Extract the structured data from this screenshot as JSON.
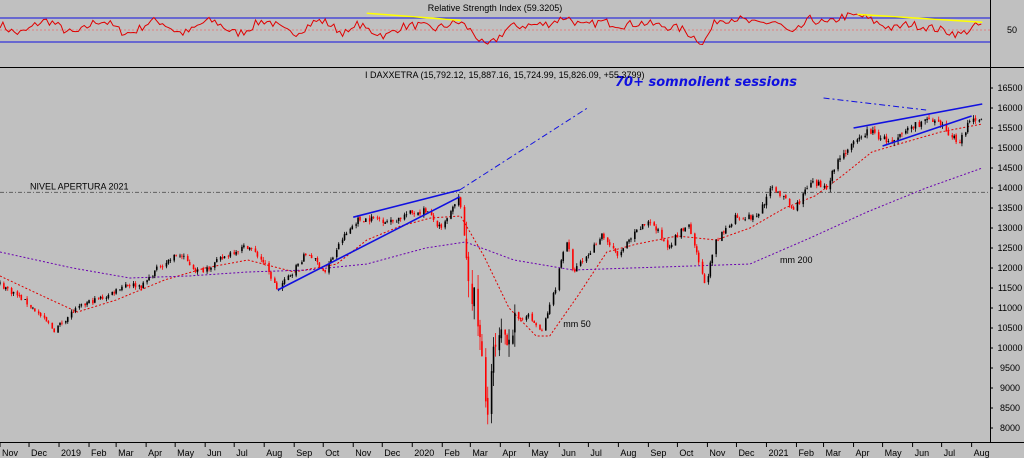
{
  "chart_data": [
    {
      "type": "line",
      "panel": "rsi",
      "title": "Relative Strength Index (59.3205)",
      "ylim": [
        0,
        100
      ],
      "y_ticks": [
        50
      ],
      "levels": [
        30,
        50,
        70
      ],
      "series": [
        {
          "name": "",
          "color": "#e00000",
          "points": [
            [
              "2019-11-01",
              62
            ],
            [
              "2019-11-20",
              48
            ],
            [
              "2019-12-05",
              40
            ],
            [
              "2019-12-20",
              55
            ],
            [
              "2020-01-05",
              58
            ],
            [
              "2020-01-25",
              52
            ],
            [
              "2020-02-10",
              60
            ],
            [
              "2020-02-20",
              63
            ],
            [
              "2020-03-05",
              44
            ],
            [
              "2020-03-16",
              22
            ],
            [
              "2020-03-25",
              30
            ],
            [
              "2020-04-10",
              55
            ],
            [
              "2020-05-01",
              58
            ],
            [
              "2020-05-20",
              60
            ],
            [
              "2020-06-08",
              72
            ],
            [
              "2020-06-25",
              56
            ],
            [
              "2020-07-15",
              64
            ],
            [
              "2020-08-05",
              58
            ],
            [
              "2020-08-25",
              62
            ],
            [
              "2020-09-15",
              57
            ],
            [
              "2020-10-05",
              52
            ],
            [
              "2020-10-28",
              28
            ],
            [
              "2020-11-10",
              66
            ],
            [
              "2020-11-30",
              70
            ],
            [
              "2020-12-20",
              60
            ],
            [
              "2021-01-10",
              64
            ],
            [
              "2021-01-28",
              42
            ],
            [
              "2021-02-15",
              68
            ],
            [
              "2021-03-05",
              60
            ],
            [
              "2021-03-20",
              72
            ],
            [
              "2021-04-08",
              74
            ],
            [
              "2021-04-25",
              62
            ],
            [
              "2021-05-12",
              52
            ],
            [
              "2021-05-28",
              60
            ],
            [
              "2021-06-15",
              55
            ],
            [
              "2021-07-01",
              50
            ],
            [
              "2021-07-20",
              42
            ],
            [
              "2021-08-05",
              56
            ],
            [
              "2021-08-12",
              59.3
            ]
          ]
        }
      ],
      "annotations": [
        {
          "type": "trendline",
          "color": "#ffff00",
          "from": [
            "2019-11-15",
            78
          ],
          "to": [
            "2020-02-20",
            66
          ]
        },
        {
          "type": "trendline",
          "color": "#ffff00",
          "from": [
            "2021-04-05",
            76
          ],
          "to": [
            "2021-08-12",
            63
          ]
        }
      ]
    },
    {
      "type": "line",
      "panel": "price",
      "title": "I DAXXETRA (15,792.12, 15,887.16, 15,724.99, 15,826.09, +55.3799)",
      "ylim": [
        7700,
        16700
      ],
      "y_ticks": [
        8000,
        8500,
        9000,
        9500,
        10000,
        10500,
        11000,
        11500,
        12000,
        12500,
        13000,
        13500,
        14000,
        14500,
        15000,
        15500,
        16000,
        16500
      ],
      "x_ticks": [
        {
          "date": "2018-11-01",
          "label": "Nov"
        },
        {
          "date": "2018-12-01",
          "label": "Dec"
        },
        {
          "date": "2019-01-01",
          "label": "2019"
        },
        {
          "date": "2019-02-01",
          "label": "Feb"
        },
        {
          "date": "2019-03-01",
          "label": "Mar"
        },
        {
          "date": "2019-04-01",
          "label": "Apr"
        },
        {
          "date": "2019-05-01",
          "label": "May"
        },
        {
          "date": "2019-06-01",
          "label": "Jun"
        },
        {
          "date": "2019-07-01",
          "label": "Jul"
        },
        {
          "date": "2019-08-01",
          "label": "Aug"
        },
        {
          "date": "2019-09-01",
          "label": "Sep"
        },
        {
          "date": "2019-10-01",
          "label": "Oct"
        },
        {
          "date": "2019-11-01",
          "label": "Nov"
        },
        {
          "date": "2019-12-01",
          "label": "Dec"
        },
        {
          "date": "2020-01-01",
          "label": "2020"
        },
        {
          "date": "2020-02-01",
          "label": "Feb"
        },
        {
          "date": "2020-03-01",
          "label": "Mar"
        },
        {
          "date": "2020-04-01",
          "label": "Apr"
        },
        {
          "date": "2020-05-01",
          "label": "May"
        },
        {
          "date": "2020-06-01",
          "label": "Jun"
        },
        {
          "date": "2020-07-01",
          "label": "Jul"
        },
        {
          "date": "2020-08-01",
          "label": "Aug"
        },
        {
          "date": "2020-09-01",
          "label": "Sep"
        },
        {
          "date": "2020-10-01",
          "label": "Oct"
        },
        {
          "date": "2020-11-01",
          "label": "Nov"
        },
        {
          "date": "2020-12-01",
          "label": "Dec"
        },
        {
          "date": "2021-01-01",
          "label": "2021"
        },
        {
          "date": "2021-02-01",
          "label": "Feb"
        },
        {
          "date": "2021-03-01",
          "label": "Mar"
        },
        {
          "date": "2021-04-01",
          "label": "Apr"
        },
        {
          "date": "2021-05-01",
          "label": "May"
        },
        {
          "date": "2021-06-01",
          "label": "Jun"
        },
        {
          "date": "2021-07-01",
          "label": "Jul"
        },
        {
          "date": "2021-08-01",
          "label": "Aug"
        }
      ],
      "series": [
        {
          "name": "",
          "color": "#000000",
          "up_color": "#000000",
          "down_color": "#ff0000",
          "points": [
            [
              "2018-11-01",
              11600
            ],
            [
              "2018-11-20",
              11300
            ],
            [
              "2018-12-05",
              11000
            ],
            [
              "2018-12-27",
              10450
            ],
            [
              "2019-01-15",
              10900
            ],
            [
              "2019-02-01",
              11150
            ],
            [
              "2019-02-20",
              11300
            ],
            [
              "2019-03-10",
              11600
            ],
            [
              "2019-03-28",
              11550
            ],
            [
              "2019-04-15",
              12050
            ],
            [
              "2019-05-05",
              12350
            ],
            [
              "2019-05-25",
              11900
            ],
            [
              "2019-06-10",
              12100
            ],
            [
              "2019-06-28",
              12400
            ],
            [
              "2019-07-15",
              12550
            ],
            [
              "2019-07-30",
              12200
            ],
            [
              "2019-08-15",
              11450
            ],
            [
              "2019-08-30",
              11900
            ],
            [
              "2019-09-15",
              12400
            ],
            [
              "2019-10-03",
              11900
            ],
            [
              "2019-10-20",
              12700
            ],
            [
              "2019-11-05",
              13200
            ],
            [
              "2019-11-25",
              13250
            ],
            [
              "2019-12-10",
              13150
            ],
            [
              "2019-12-27",
              13350
            ],
            [
              "2020-01-15",
              13450
            ],
            [
              "2020-01-31",
              12950
            ],
            [
              "2020-02-19",
              13780
            ],
            [
              "2020-02-28",
              11900
            ],
            [
              "2020-03-09",
              10600
            ],
            [
              "2020-03-18",
              8440
            ],
            [
              "2020-03-25",
              9800
            ],
            [
              "2020-04-08",
              10400
            ],
            [
              "2020-04-28",
              10850
            ],
            [
              "2020-05-14",
              10400
            ],
            [
              "2020-05-29",
              11600
            ],
            [
              "2020-06-08",
              12800
            ],
            [
              "2020-06-15",
              11900
            ],
            [
              "2020-06-30",
              12300
            ],
            [
              "2020-07-15",
              12850
            ],
            [
              "2020-07-31",
              12300
            ],
            [
              "2020-08-20",
              12900
            ],
            [
              "2020-09-02",
              13200
            ],
            [
              "2020-09-21",
              12550
            ],
            [
              "2020-10-12",
              13100
            ],
            [
              "2020-10-30",
              11550
            ],
            [
              "2020-11-09",
              12600
            ],
            [
              "2020-11-30",
              13300
            ],
            [
              "2020-12-21",
              13250
            ],
            [
              "2021-01-08",
              14050
            ],
            [
              "2021-01-29",
              13450
            ],
            [
              "2021-02-15",
              14100
            ],
            [
              "2021-03-04",
              14050
            ],
            [
              "2021-03-18",
              14800
            ],
            [
              "2021-04-07",
              15200
            ],
            [
              "2021-04-16",
              15450
            ],
            [
              "2021-05-12",
              15100
            ],
            [
              "2021-05-28",
              15500
            ],
            [
              "2021-06-15",
              15700
            ],
            [
              "2021-06-30",
              15550
            ],
            [
              "2021-07-19",
              15150
            ],
            [
              "2021-07-29",
              15600
            ],
            [
              "2021-08-12",
              15826
            ]
          ]
        },
        {
          "name": "mm 50",
          "color": "#e00000",
          "dashed": true,
          "points": [
            [
              "2018-11-01",
              11800
            ],
            [
              "2018-12-15",
              11300
            ],
            [
              "2019-01-20",
              10900
            ],
            [
              "2019-03-01",
              11200
            ],
            [
              "2019-04-20",
              11700
            ],
            [
              "2019-06-01",
              12000
            ],
            [
              "2019-07-15",
              12200
            ],
            [
              "2019-09-01",
              11900
            ],
            [
              "2019-10-15",
              12100
            ],
            [
              "2019-11-15",
              12700
            ],
            [
              "2019-12-20",
              13050
            ],
            [
              "2020-01-20",
              13250
            ],
            [
              "2020-02-20",
              13300
            ],
            [
              "2020-03-15",
              12300
            ],
            [
              "2020-04-10",
              11000
            ],
            [
              "2020-05-08",
              10300
            ],
            [
              "2020-05-22",
              10300
            ],
            [
              "2020-06-20",
              11300
            ],
            [
              "2020-07-20",
              12400
            ],
            [
              "2020-08-20",
              12600
            ],
            [
              "2020-10-01",
              12800
            ],
            [
              "2020-11-10",
              12700
            ],
            [
              "2020-12-15",
              13000
            ],
            [
              "2021-01-20",
              13500
            ],
            [
              "2021-02-20",
              13800
            ],
            [
              "2021-03-20",
              14300
            ],
            [
              "2021-04-20",
              14900
            ],
            [
              "2021-05-25",
              15150
            ],
            [
              "2021-06-30",
              15400
            ],
            [
              "2021-08-12",
              15600
            ]
          ]
        },
        {
          "name": "mm 200",
          "color": "#6a00b0",
          "dashed": true,
          "points": [
            [
              "2018-11-01",
              12400
            ],
            [
              "2019-01-15",
              12000
            ],
            [
              "2019-03-15",
              11750
            ],
            [
              "2019-05-15",
              11800
            ],
            [
              "2019-07-15",
              11900
            ],
            [
              "2019-09-15",
              11950
            ],
            [
              "2019-11-15",
              12100
            ],
            [
              "2020-01-15",
              12500
            ],
            [
              "2020-02-25",
              12650
            ],
            [
              "2020-04-15",
              12200
            ],
            [
              "2020-06-15",
              11950
            ],
            [
              "2020-08-15",
              12000
            ],
            [
              "2020-10-15",
              12050
            ],
            [
              "2020-12-15",
              12100
            ],
            [
              "2021-02-15",
              12750
            ],
            [
              "2021-04-15",
              13400
            ],
            [
              "2021-06-15",
              14000
            ],
            [
              "2021-08-12",
              14500
            ]
          ]
        }
      ],
      "annotations": [
        {
          "type": "hline",
          "label": "NIVEL APERTURA 2021",
          "value": 13890,
          "color": "#606060",
          "dashed": true
        },
        {
          "type": "text",
          "label": "70+ somnolient sessions",
          "color": "#1010e0"
        },
        {
          "type": "trendline",
          "color": "#1010e0",
          "from": [
            "2019-08-15",
            11450
          ],
          "to": [
            "2020-02-19",
            13780
          ]
        },
        {
          "type": "trendline",
          "color": "#1010e0",
          "from": [
            "2019-11-01",
            13270
          ],
          "to": [
            "2020-02-19",
            13950
          ]
        },
        {
          "type": "trendline",
          "color": "#1010e0",
          "dashed": true,
          "from": [
            "2020-02-19",
            13950
          ],
          "to": [
            "2020-06-30",
            16000
          ]
        },
        {
          "type": "trendline",
          "color": "#1010e0",
          "from": [
            "2021-04-01",
            15500
          ],
          "to": [
            "2021-08-12",
            16100
          ]
        },
        {
          "type": "trendline",
          "color": "#1010e0",
          "from": [
            "2021-05-01",
            15050
          ],
          "to": [
            "2021-08-01",
            15800
          ]
        },
        {
          "type": "trendline",
          "color": "#1010e0",
          "dashed": true,
          "from": [
            "2021-03-01",
            16250
          ],
          "to": [
            "2021-06-15",
            15950
          ]
        }
      ]
    }
  ]
}
